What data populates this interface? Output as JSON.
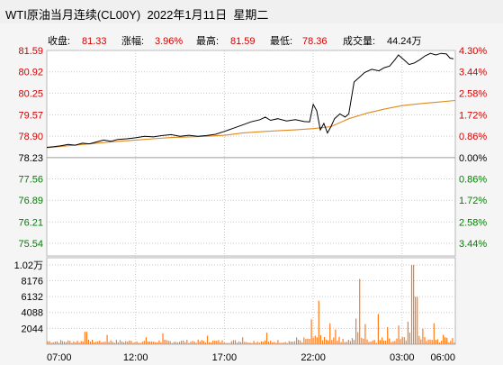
{
  "window": {
    "title": "WTI原油当月连续(CL00Y)  2022年1月11日  星期二"
  },
  "colors": {
    "up": "#d40000",
    "down": "#008000",
    "price_line": "#000000",
    "avg_line": "#e08a1e",
    "volume_bar": "#ff7a1a",
    "grid": "#c9c9c9",
    "background": "#ffffff",
    "text": "#000000"
  },
  "info_bar": {
    "close_label": "收盘:",
    "close_value": "81.33",
    "change_label": "涨幅:",
    "change_value": "3.96%",
    "high_label": "最高:",
    "high_value": "81.59",
    "low_label": "最低:",
    "low_value": "78.36",
    "volume_label": "成交量:",
    "volume_value": "44.24万"
  },
  "chart_data": {
    "type": "line",
    "ylim": [
      75.54,
      81.59
    ],
    "reference_price": 78.23,
    "y_tick_labels": [
      {
        "value": 81.59,
        "label": "81.59",
        "pct": "4.30%"
      },
      {
        "value": 80.92,
        "label": "80.92",
        "pct": "3.44%"
      },
      {
        "value": 80.25,
        "label": "80.25",
        "pct": "2.58%"
      },
      {
        "value": 79.57,
        "label": "79.57",
        "pct": "1.72%"
      },
      {
        "value": 78.9,
        "label": "78.90",
        "pct": "0.86%"
      },
      {
        "value": 78.23,
        "label": "78.23",
        "pct": "0.00%"
      },
      {
        "value": 77.56,
        "label": "77.56",
        "pct": "0.86%"
      },
      {
        "value": 76.89,
        "label": "76.89",
        "pct": "1.72%"
      },
      {
        "value": 76.21,
        "label": "76.21",
        "pct": "2.58%"
      },
      {
        "value": 75.54,
        "label": "75.54",
        "pct": "3.44%"
      }
    ],
    "x_tick_labels": [
      "07:00",
      "12:00",
      "17:00",
      "22:00",
      "03:00",
      "06:00"
    ],
    "x_range_hours": [
      0,
      23
    ],
    "x_tick_hours": [
      0,
      5,
      10,
      15,
      20,
      23
    ],
    "price_series": [
      [
        0.0,
        78.55
      ],
      [
        0.4,
        78.57
      ],
      [
        0.8,
        78.6
      ],
      [
        1.2,
        78.64
      ],
      [
        1.6,
        78.62
      ],
      [
        2.0,
        78.68
      ],
      [
        2.4,
        78.66
      ],
      [
        2.8,
        78.72
      ],
      [
        3.2,
        78.78
      ],
      [
        3.6,
        78.74
      ],
      [
        4.0,
        78.8
      ],
      [
        4.5,
        78.82
      ],
      [
        5.0,
        78.85
      ],
      [
        5.5,
        78.9
      ],
      [
        6.0,
        78.88
      ],
      [
        6.5,
        78.92
      ],
      [
        7.0,
        78.95
      ],
      [
        7.5,
        78.9
      ],
      [
        8.0,
        78.93
      ],
      [
        8.5,
        78.9
      ],
      [
        9.0,
        78.92
      ],
      [
        9.5,
        78.96
      ],
      [
        10.0,
        79.05
      ],
      [
        10.5,
        79.15
      ],
      [
        11.0,
        79.25
      ],
      [
        11.5,
        79.35
      ],
      [
        12.0,
        79.42
      ],
      [
        12.3,
        79.5
      ],
      [
        12.6,
        79.4
      ],
      [
        13.0,
        79.45
      ],
      [
        13.5,
        79.38
      ],
      [
        14.0,
        79.42
      ],
      [
        14.5,
        79.36
      ],
      [
        14.8,
        79.35
      ],
      [
        15.0,
        79.9
      ],
      [
        15.2,
        79.7
      ],
      [
        15.4,
        79.1
      ],
      [
        15.6,
        79.3
      ],
      [
        15.8,
        79.0
      ],
      [
        16.0,
        79.2
      ],
      [
        16.2,
        79.45
      ],
      [
        16.5,
        79.6
      ],
      [
        16.8,
        79.5
      ],
      [
        17.0,
        79.6
      ],
      [
        17.3,
        80.6
      ],
      [
        17.6,
        80.75
      ],
      [
        17.9,
        80.9
      ],
      [
        18.3,
        81.0
      ],
      [
        18.7,
        80.95
      ],
      [
        19.0,
        81.05
      ],
      [
        19.3,
        81.1
      ],
      [
        19.6,
        81.3
      ],
      [
        19.8,
        81.45
      ],
      [
        20.1,
        81.3
      ],
      [
        20.4,
        81.15
      ],
      [
        20.7,
        81.2
      ],
      [
        21.0,
        81.3
      ],
      [
        21.3,
        81.42
      ],
      [
        21.6,
        81.5
      ],
      [
        21.9,
        81.45
      ],
      [
        22.2,
        81.5
      ],
      [
        22.5,
        81.48
      ],
      [
        22.7,
        81.35
      ],
      [
        22.9,
        81.33
      ]
    ],
    "avg_series": [
      [
        0.0,
        78.54
      ],
      [
        1.0,
        78.59
      ],
      [
        2.0,
        78.64
      ],
      [
        3.0,
        78.69
      ],
      [
        4.0,
        78.74
      ],
      [
        5.0,
        78.78
      ],
      [
        6.0,
        78.82
      ],
      [
        7.0,
        78.86
      ],
      [
        8.0,
        78.88
      ],
      [
        9.0,
        78.9
      ],
      [
        10.0,
        78.93
      ],
      [
        11.0,
        79.0
      ],
      [
        12.0,
        79.04
      ],
      [
        13.0,
        79.07
      ],
      [
        14.0,
        79.1
      ],
      [
        15.0,
        79.14
      ],
      [
        16.0,
        79.2
      ],
      [
        17.0,
        79.45
      ],
      [
        18.0,
        79.62
      ],
      [
        19.0,
        79.75
      ],
      [
        20.0,
        79.86
      ],
      [
        21.0,
        79.92
      ],
      [
        22.0,
        79.97
      ],
      [
        23.0,
        80.02
      ]
    ],
    "volume_ylim": [
      0,
      10200
    ],
    "volume_tick_labels": [
      {
        "value": 10200,
        "label": "1.02万"
      },
      {
        "value": 8176,
        "label": "8176"
      },
      {
        "value": 6132,
        "label": "6132"
      },
      {
        "value": 4088,
        "label": "4088"
      },
      {
        "value": 2044,
        "label": "2044"
      }
    ],
    "volume_peaks": [
      [
        2.2,
        1600
      ],
      [
        3.4,
        1200
      ],
      [
        5.6,
        900
      ],
      [
        6.5,
        1400
      ],
      [
        9.0,
        1100
      ],
      [
        11.0,
        900
      ],
      [
        12.4,
        1500
      ],
      [
        14.9,
        3200
      ],
      [
        15.3,
        5600
      ],
      [
        15.9,
        2700
      ],
      [
        16.3,
        1900
      ],
      [
        17.4,
        3300
      ],
      [
        17.6,
        8400
      ],
      [
        17.9,
        2600
      ],
      [
        18.7,
        3900
      ],
      [
        19.2,
        2200
      ],
      [
        19.8,
        2400
      ],
      [
        20.3,
        2900
      ],
      [
        20.6,
        10200
      ],
      [
        20.8,
        6100
      ],
      [
        21.2,
        2000
      ],
      [
        21.8,
        2700
      ],
      [
        22.3,
        1200
      ],
      [
        22.8,
        800
      ]
    ]
  }
}
